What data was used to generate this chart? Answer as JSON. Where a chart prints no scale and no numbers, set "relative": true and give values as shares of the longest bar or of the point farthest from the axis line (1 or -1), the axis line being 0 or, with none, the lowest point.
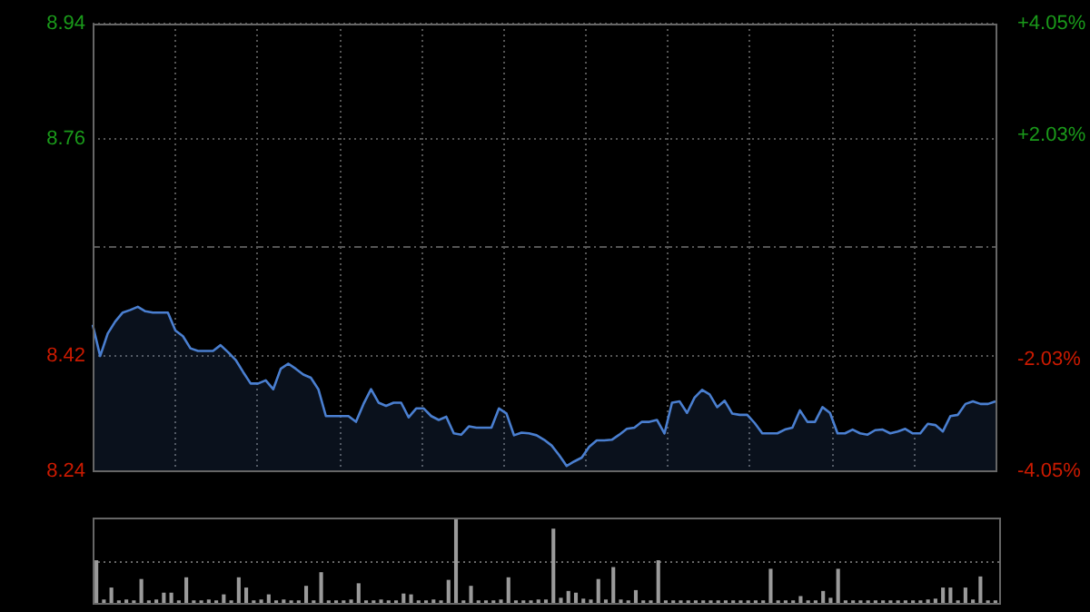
{
  "chart_data": [
    {
      "type": "area",
      "categories": [
        null,
        null,
        null,
        null,
        null,
        null,
        null,
        null,
        null,
        null,
        null,
        null,
        null,
        null,
        null,
        null,
        null,
        null,
        null,
        null,
        null,
        null,
        null,
        null,
        null,
        null,
        null,
        null,
        null,
        null,
        null,
        null,
        null,
        null,
        null,
        null,
        null,
        null,
        null,
        null,
        null,
        null,
        null,
        null,
        null,
        null,
        null,
        null,
        null,
        null,
        null,
        null,
        null,
        null,
        null,
        null,
        null,
        null,
        null,
        null,
        null,
        null,
        null,
        null,
        null,
        null,
        null,
        null,
        null,
        null,
        null,
        null,
        null,
        null,
        null,
        null,
        null,
        null,
        null,
        null,
        null,
        null,
        null,
        null,
        null,
        null,
        null,
        null,
        null,
        null,
        null,
        null,
        null,
        null,
        null,
        null,
        null,
        null,
        null,
        null,
        null,
        null,
        null,
        null,
        null,
        null,
        null,
        null,
        null,
        null,
        null,
        null,
        null,
        null,
        null,
        null,
        null,
        null,
        null,
        null,
        null
      ],
      "ylim": [
        8.24,
        8.94
      ],
      "yticks": [
        8.94,
        8.76,
        {
          "value": 8.59,
          "label": null
        },
        8.42,
        8.24
      ],
      "y2lim": [
        -4.05,
        4.05
      ],
      "y2ticks": [
        {
          "value": 4.05,
          "label": "+4.05%"
        },
        {
          "value": 2.03,
          "label": "+2.03%"
        },
        {
          "value": -2.03,
          "label": "-2.03%"
        },
        {
          "value": -4.05,
          "label": "-4.05%"
        }
      ],
      "grid": true,
      "series": [
        {
          "color": "#4a7fd0",
          "values": [
            8.469,
            8.42,
            8.455,
            8.474,
            8.488,
            8.492,
            8.497,
            8.49,
            8.488,
            8.488,
            8.488,
            8.46,
            8.451,
            8.432,
            8.428,
            8.428,
            8.428,
            8.437,
            8.426,
            8.414,
            8.395,
            8.377,
            8.377,
            8.382,
            8.368,
            8.4,
            8.408,
            8.4,
            8.391,
            8.386,
            8.368,
            8.326,
            8.326,
            8.326,
            8.326,
            8.317,
            8.345,
            8.368,
            8.347,
            8.342,
            8.347,
            8.347,
            8.324,
            8.338,
            8.338,
            8.326,
            8.32,
            8.325,
            8.299,
            8.297,
            8.31,
            8.308,
            8.308,
            8.308,
            8.338,
            8.33,
            8.296,
            8.3,
            8.299,
            8.296,
            8.289,
            8.28,
            8.265,
            8.248,
            8.255,
            8.261,
            8.278,
            8.288,
            8.288,
            8.289,
            8.297,
            8.306,
            8.308,
            8.317,
            8.317,
            8.32,
            8.299,
            8.347,
            8.349,
            8.331,
            8.355,
            8.367,
            8.36,
            8.34,
            8.35,
            8.33,
            8.328,
            8.328,
            8.315,
            8.299,
            8.299,
            8.299,
            8.305,
            8.308,
            8.335,
            8.317,
            8.317,
            8.34,
            8.331,
            8.299,
            8.299,
            8.305,
            8.299,
            8.297,
            8.304,
            8.305,
            8.299,
            8.302,
            8.306,
            8.299,
            8.299,
            8.314,
            8.312,
            8.302,
            8.326,
            8.328,
            8.345,
            8.349,
            8.345,
            8.345,
            8.349
          ]
        }
      ]
    },
    {
      "type": "bar",
      "relative": true,
      "color": "#9a9a9a",
      "ref_lines": [
        {
          "axis": "y",
          "value": 0.5,
          "color": "#666666",
          "line_style": "dotted"
        }
      ],
      "categories": [
        null,
        null,
        null,
        null,
        null,
        null,
        null,
        null,
        null,
        null,
        null,
        null,
        null,
        null,
        null,
        null,
        null,
        null,
        null,
        null,
        null,
        null,
        null,
        null,
        null,
        null,
        null,
        null,
        null,
        null,
        null,
        null,
        null,
        null,
        null,
        null,
        null,
        null,
        null,
        null,
        null,
        null,
        null,
        null,
        null,
        null,
        null,
        null,
        null,
        null,
        null,
        null,
        null,
        null,
        null,
        null,
        null,
        null,
        null,
        null,
        null,
        null,
        null,
        null,
        null,
        null,
        null,
        null,
        null,
        null,
        null,
        null,
        null,
        null,
        null,
        null,
        null,
        null,
        null,
        null,
        null,
        null,
        null,
        null,
        null,
        null,
        null,
        null,
        null,
        null,
        null,
        null,
        null,
        null,
        null,
        null,
        null,
        null,
        null,
        null,
        null,
        null,
        null,
        null,
        null,
        null,
        null,
        null,
        null,
        null,
        null,
        null,
        null,
        null,
        null,
        null,
        null,
        null,
        null,
        null,
        null
      ],
      "values": [
        0.5,
        0.04,
        0.18,
        0.03,
        0.04,
        0.03,
        0.28,
        0.03,
        0.04,
        0.12,
        0.12,
        0.03,
        0.3,
        0.03,
        0.03,
        0.04,
        0.03,
        0.1,
        0.03,
        0.3,
        0.18,
        0.03,
        0.04,
        0.1,
        0.03,
        0.04,
        0.03,
        0.03,
        0.2,
        0.03,
        0.36,
        0.03,
        0.03,
        0.03,
        0.04,
        0.23,
        0.03,
        0.03,
        0.04,
        0.03,
        0.03,
        0.11,
        0.1,
        0.03,
        0.03,
        0.04,
        0.03,
        0.27,
        1,
        0.03,
        0.2,
        0.03,
        0.03,
        0.03,
        0.04,
        0.3,
        0.03,
        0.03,
        0.03,
        0.04,
        0.04,
        0.87,
        0.06,
        0.14,
        0.12,
        0.05,
        0.04,
        0.28,
        0.04,
        0.42,
        0.04,
        0.03,
        0.15,
        0.03,
        0.03,
        0.5,
        0.03,
        0.03,
        0.03,
        0.03,
        0.03,
        0.03,
        0.03,
        0.03,
        0.03,
        0.03,
        0.03,
        0.03,
        0.03,
        0.03,
        0.4,
        0.03,
        0.03,
        0.03,
        0.08,
        0.03,
        0.03,
        0.14,
        0.06,
        0.4,
        0.03,
        0.03,
        0.03,
        0.03,
        0.03,
        0.03,
        0.03,
        0.03,
        0.03,
        0.03,
        0.03,
        0.04,
        0.05,
        0.18,
        0.18,
        0.03,
        0.18,
        0.04,
        0.31,
        0.03,
        0.03
      ]
    }
  ]
}
